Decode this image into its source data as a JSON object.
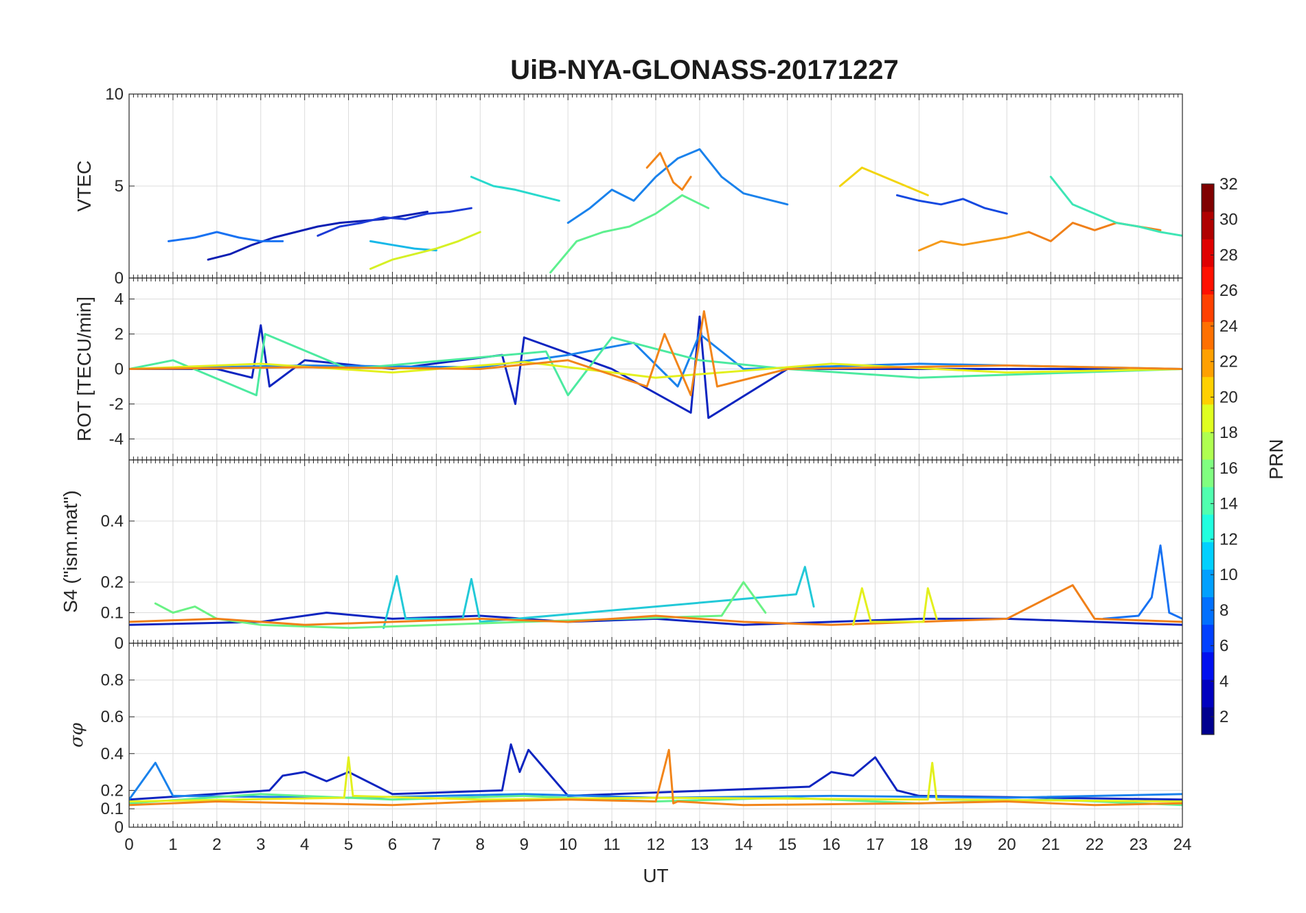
{
  "chart_data": [
    {
      "type": "line",
      "title": "UiB-NYA-GLONASS-20171227",
      "ylabel": "VTEC",
      "xlim": [
        0,
        24
      ],
      "ylim": [
        0,
        10
      ],
      "yticks": [
        "0",
        "5",
        "10"
      ],
      "series": [
        {
          "prn": 2,
          "color": "#0c1fb3",
          "x": [
            1.8,
            2.3,
            2.8,
            3.3,
            3.8,
            4.3,
            4.8,
            5.3,
            5.8,
            6.3,
            6.8
          ],
          "y": [
            1.0,
            1.3,
            1.8,
            2.2,
            2.5,
            2.8,
            3.0,
            3.1,
            3.2,
            3.4,
            3.6
          ]
        },
        {
          "prn": 5,
          "color": "#1d3bd6",
          "x": [
            4.3,
            4.8,
            5.3,
            5.8,
            6.3,
            6.8,
            7.3,
            7.8
          ],
          "y": [
            2.3,
            2.8,
            3.0,
            3.3,
            3.2,
            3.5,
            3.6,
            3.8
          ]
        },
        {
          "prn": 8,
          "color": "#1872f2",
          "x": [
            0.9,
            1.5,
            2.0,
            2.5,
            3.0,
            3.5
          ],
          "y": [
            2.0,
            2.2,
            2.5,
            2.2,
            2.0,
            2.0
          ]
        },
        {
          "prn": 9,
          "color": "#1a82ec",
          "x": [
            10.0,
            10.5,
            11.0,
            11.5,
            12.0,
            12.5,
            13.0,
            13.5,
            14.0,
            14.5,
            15.0
          ],
          "y": [
            3.0,
            3.8,
            4.8,
            4.2,
            5.5,
            6.5,
            7.0,
            5.5,
            4.6,
            4.3,
            4.0
          ]
        },
        {
          "prn": 11,
          "color": "#17b8e8",
          "x": [
            5.5,
            6.0,
            6.5,
            7.0
          ],
          "y": [
            2.0,
            1.8,
            1.6,
            1.5
          ]
        },
        {
          "prn": 13,
          "color": "#28d9cd",
          "x": [
            7.8,
            8.3,
            8.8,
            9.3,
            9.8
          ],
          "y": [
            5.5,
            5.0,
            4.8,
            4.5,
            4.2
          ]
        },
        {
          "prn": 16,
          "color": "#5ef08f",
          "x": [
            9.6,
            10.2,
            10.8,
            11.4,
            12.0,
            12.6,
            13.2
          ],
          "y": [
            0.3,
            2.0,
            2.5,
            2.8,
            3.5,
            4.5,
            3.8
          ]
        },
        {
          "prn": 19,
          "color": "#d6f025",
          "x": [
            5.5,
            6.0,
            6.5,
            7.0,
            7.5,
            8.0
          ],
          "y": [
            0.5,
            1.0,
            1.3,
            1.6,
            2.0,
            2.5
          ]
        },
        {
          "prn": 21,
          "color": "#f2d50f",
          "x": [
            16.2,
            16.7,
            17.2,
            17.7,
            18.2
          ],
          "y": [
            5.0,
            6.0,
            5.5,
            5.0,
            4.5
          ]
        },
        {
          "prn": 24,
          "color": "#f2851a",
          "x": [
            11.8,
            12.1,
            12.4,
            12.6,
            12.8
          ],
          "y": [
            6.0,
            6.8,
            5.2,
            4.8,
            5.5
          ]
        },
        {
          "prn": 23,
          "color": "#f59a1a",
          "x": [
            18.0,
            18.5,
            19.0,
            19.5,
            20.0,
            20.5
          ],
          "y": [
            1.5,
            2.0,
            1.8,
            2.0,
            2.2,
            2.5
          ]
        },
        {
          "prn": 22,
          "color": "#f08019",
          "x": [
            20.5,
            21.0,
            21.5,
            22.0,
            22.5,
            23.0,
            23.5
          ],
          "y": [
            2.5,
            2.0,
            3.0,
            2.6,
            3.0,
            2.8,
            2.6
          ]
        },
        {
          "prn": 6,
          "color": "#1449e0",
          "x": [
            17.5,
            18.0,
            18.5,
            19.0,
            19.5,
            20.0
          ],
          "y": [
            4.5,
            4.2,
            4.0,
            4.3,
            3.8,
            3.5
          ]
        },
        {
          "prn": 14,
          "color": "#3ee6b5",
          "x": [
            21.0,
            21.5,
            22.0,
            22.5,
            23.0,
            23.5,
            24.0
          ],
          "y": [
            5.5,
            4.0,
            3.5,
            3.0,
            2.8,
            2.5,
            2.3
          ]
        }
      ]
    },
    {
      "type": "line",
      "ylabel": "ROT [TECU/min]",
      "xlim": [
        0,
        24
      ],
      "ylim": [
        -5.2,
        5.2
      ],
      "yticks": [
        "-4",
        "-2",
        "0",
        "2",
        "4"
      ],
      "series": [
        {
          "prn": 3,
          "color": "#0e25c0",
          "x": [
            0,
            2,
            2.8,
            3.0,
            3.2,
            4.0,
            6,
            8.5,
            8.8,
            9.0,
            11,
            12.8,
            13.0,
            13.2,
            15,
            24
          ],
          "y": [
            0,
            0,
            -0.5,
            2.5,
            -1.0,
            0.5,
            0,
            0.8,
            -2.0,
            1.8,
            0,
            -2.5,
            3.0,
            -2.8,
            0,
            0
          ]
        },
        {
          "prn": 9,
          "color": "#1a82ec",
          "x": [
            0,
            4,
            8,
            10,
            11.5,
            12.5,
            13,
            14,
            18,
            24
          ],
          "y": [
            0,
            0.2,
            0.1,
            0.8,
            1.5,
            -1.0,
            2.0,
            0,
            0.3,
            0
          ]
        },
        {
          "prn": 15,
          "color": "#4ceaa0",
          "x": [
            0,
            1,
            2.9,
            3.1,
            5,
            9.5,
            10,
            11,
            13,
            15,
            18,
            24
          ],
          "y": [
            0,
            0.5,
            -1.5,
            2.0,
            0,
            1.0,
            -1.5,
            1.8,
            0.5,
            0,
            -0.5,
            0
          ]
        },
        {
          "prn": 20,
          "color": "#e3f01e",
          "x": [
            0,
            3,
            6,
            9,
            12,
            16,
            20,
            24
          ],
          "y": [
            0,
            0.3,
            -0.2,
            0.4,
            -0.5,
            0.3,
            -0.2,
            0
          ]
        },
        {
          "prn": 24,
          "color": "#f2851a",
          "x": [
            0,
            4,
            8,
            10,
            11.8,
            12.2,
            12.8,
            13.1,
            13.4,
            15,
            20,
            24
          ],
          "y": [
            0,
            0.1,
            0,
            0.5,
            -1.0,
            2.0,
            -1.5,
            3.3,
            -1.0,
            0,
            0.2,
            0
          ]
        }
      ]
    },
    {
      "type": "line",
      "ylabel": "S4 (\"ism.mat\")",
      "xlim": [
        0,
        24
      ],
      "ylim": [
        0,
        0.6
      ],
      "yticks": [
        "0",
        "0.1",
        "0.2",
        "0.4"
      ],
      "series": [
        {
          "prn": 2,
          "color": "#0e25c0",
          "x": [
            0,
            3,
            4.5,
            6,
            8,
            10,
            12,
            14,
            16,
            18,
            20,
            22,
            24
          ],
          "y": [
            0.06,
            0.07,
            0.1,
            0.08,
            0.09,
            0.07,
            0.08,
            0.06,
            0.07,
            0.08,
            0.08,
            0.07,
            0.06
          ]
        },
        {
          "prn": 8,
          "color": "#1872f2",
          "x": [
            22.2,
            23.0,
            23.3,
            23.5,
            23.7,
            24.0
          ],
          "y": [
            0.08,
            0.09,
            0.15,
            0.32,
            0.1,
            0.08
          ]
        },
        {
          "prn": 12,
          "color": "#22c9d8",
          "x": [
            5.8,
            6.1,
            6.3,
            7.6,
            7.8,
            8.0,
            15.2,
            15.4,
            15.6
          ],
          "y": [
            0.05,
            0.22,
            0.08,
            0.08,
            0.21,
            0.07,
            0.16,
            0.25,
            0.12
          ]
        },
        {
          "prn": 16,
          "color": "#6af285",
          "x": [
            0.6,
            1.0,
            1.5,
            2.0,
            3,
            5,
            9,
            13.5,
            14,
            14.5
          ],
          "y": [
            0.13,
            0.1,
            0.12,
            0.08,
            0.06,
            0.05,
            0.07,
            0.09,
            0.2,
            0.1
          ]
        },
        {
          "prn": 22,
          "color": "#f08019",
          "x": [
            0,
            2,
            4,
            6,
            8,
            10,
            12,
            14,
            16,
            18,
            20,
            21.5,
            22,
            24
          ],
          "y": [
            0.07,
            0.08,
            0.06,
            0.07,
            0.08,
            0.07,
            0.09,
            0.07,
            0.06,
            0.07,
            0.08,
            0.19,
            0.08,
            0.07
          ]
        },
        {
          "prn": 20,
          "color": "#e3f01e",
          "x": [
            16.5,
            16.7,
            16.9,
            18.1,
            18.2,
            18.4
          ],
          "y": [
            0.06,
            0.18,
            0.07,
            0.07,
            0.18,
            0.08
          ]
        }
      ]
    },
    {
      "type": "line",
      "ylabel": "σφ",
      "xlabel": "UT",
      "xlim": [
        0,
        24
      ],
      "ylim": [
        0,
        1
      ],
      "yticks": [
        "0",
        "0.1",
        "0.2",
        "0.4",
        "0.6",
        "0.8"
      ],
      "xticks": [
        "0",
        "1",
        "2",
        "3",
        "4",
        "5",
        "6",
        "7",
        "8",
        "9",
        "10",
        "11",
        "12",
        "13",
        "14",
        "15",
        "16",
        "17",
        "18",
        "19",
        "20",
        "21",
        "22",
        "23",
        "24"
      ],
      "series": [
        {
          "prn": 2,
          "color": "#0e25c0",
          "x": [
            0,
            3.2,
            3.5,
            4,
            4.5,
            5,
            6,
            8.5,
            8.7,
            8.9,
            9.1,
            10,
            15.5,
            16,
            16.5,
            17,
            17.5,
            18,
            24
          ],
          "y": [
            0.15,
            0.2,
            0.28,
            0.3,
            0.25,
            0.3,
            0.18,
            0.2,
            0.45,
            0.3,
            0.42,
            0.17,
            0.22,
            0.3,
            0.28,
            0.38,
            0.2,
            0.17,
            0.15
          ]
        },
        {
          "prn": 9,
          "color": "#1a82ec",
          "x": [
            0,
            0.6,
            1,
            5,
            9,
            12,
            16,
            20,
            24
          ],
          "y": [
            0.15,
            0.35,
            0.17,
            0.16,
            0.18,
            0.16,
            0.17,
            0.16,
            0.18
          ]
        },
        {
          "prn": 16,
          "color": "#5ef08f",
          "x": [
            0,
            3,
            6,
            9,
            12,
            15,
            18,
            21,
            24
          ],
          "y": [
            0.13,
            0.18,
            0.15,
            0.17,
            0.14,
            0.16,
            0.13,
            0.15,
            0.12
          ]
        },
        {
          "prn": 20,
          "color": "#e3f01e",
          "x": [
            0,
            4.9,
            5.0,
            5.1,
            8,
            12,
            18.2,
            18.3,
            18.4,
            24
          ],
          "y": [
            0.14,
            0.16,
            0.38,
            0.17,
            0.15,
            0.16,
            0.15,
            0.35,
            0.15,
            0.14
          ]
        },
        {
          "prn": 24,
          "color": "#f2851a",
          "x": [
            0,
            2,
            4,
            6,
            8,
            10,
            12,
            12.3,
            12.4,
            12.5,
            14,
            18,
            20,
            22,
            24
          ],
          "y": [
            0.12,
            0.14,
            0.13,
            0.12,
            0.14,
            0.15,
            0.14,
            0.42,
            0.13,
            0.14,
            0.12,
            0.13,
            0.14,
            0.12,
            0.13
          ]
        }
      ]
    }
  ],
  "colorbar": {
    "label": "PRN",
    "ticks": [
      "2",
      "4",
      "6",
      "8",
      "10",
      "12",
      "14",
      "16",
      "18",
      "20",
      "22",
      "24",
      "26",
      "28",
      "30",
      "32"
    ],
    "colormap": [
      "#00008f",
      "#0000bf",
      "#0010ef",
      "#0040ff",
      "#0070ff",
      "#00a0ff",
      "#00d0ff",
      "#20ffdf",
      "#50ffaf",
      "#80ff80",
      "#afff50",
      "#dfff20",
      "#ffd000",
      "#ffa000",
      "#ff7000",
      "#ff4000",
      "#ff1000",
      "#df0000",
      "#af0000",
      "#800000"
    ]
  }
}
